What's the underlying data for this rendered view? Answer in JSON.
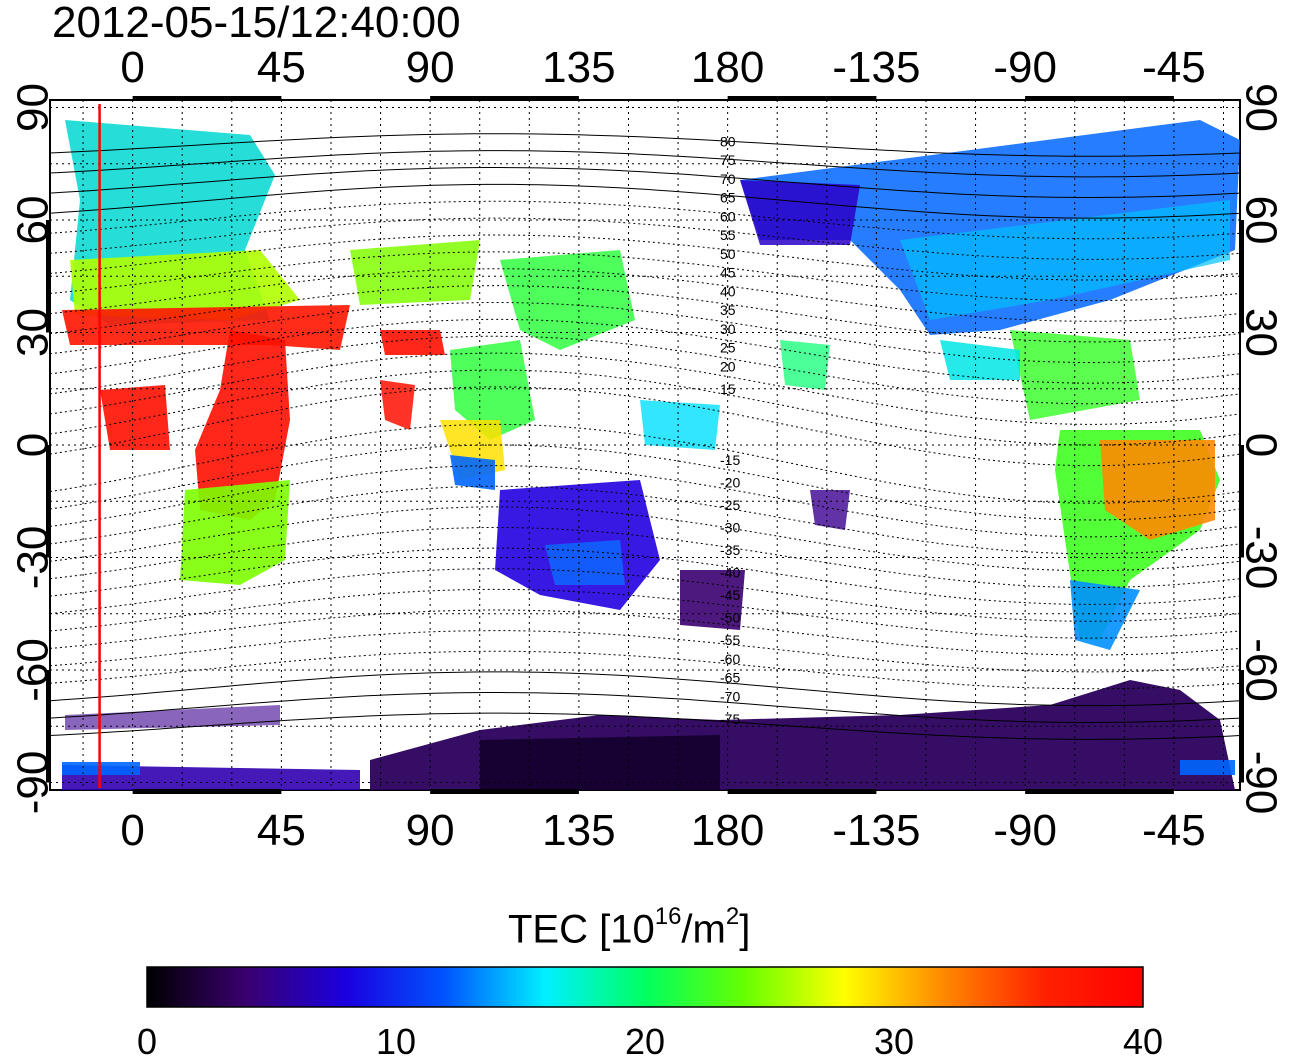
{
  "title": "2012-05-15/12:40:00",
  "map": {
    "x_ticks": [
      "0",
      "45",
      "90",
      "135",
      "180",
      "-135",
      "-90",
      "-45"
    ],
    "x_tick_lons": [
      0,
      45,
      90,
      135,
      180,
      225,
      270,
      315
    ],
    "y_ticks": [
      "90",
      "60",
      "30",
      "0",
      "-30",
      "-60",
      "-90"
    ],
    "y_tick_lats": [
      90,
      60,
      30,
      0,
      -30,
      -60,
      -90
    ],
    "lon_range": [
      -25,
      335
    ],
    "lat_range": [
      -92,
      92
    ],
    "terminator_lon": -10,
    "contour_labels": [
      "80",
      "75",
      "70",
      "65",
      "60",
      "55",
      "50",
      "45",
      "40",
      "35",
      "30",
      "25",
      "20",
      "15",
      "-15",
      "-20",
      "-25",
      "-30",
      "-35",
      "-40",
      "-45",
      "-50",
      "-55",
      "-60",
      "-65",
      "-70",
      "-75"
    ],
    "contour_label_lats": [
      81,
      76,
      71,
      66,
      61,
      56,
      51,
      46,
      41,
      36,
      31,
      26,
      21,
      15,
      -4,
      -10,
      -16,
      -22,
      -28,
      -34,
      -40,
      -46,
      -52,
      -57,
      -62,
      -67,
      -73
    ],
    "colors": {
      "terminator": "#ff0000",
      "grid": "#000000"
    }
  },
  "colorbar": {
    "label_prefix": "TEC  [10",
    "label_exp1": "16",
    "label_mid": "/m",
    "label_exp2": "2",
    "label_suffix": "]",
    "ticks": [
      "0",
      "10",
      "20",
      "30",
      "40"
    ],
    "tick_values": [
      0,
      10,
      20,
      30,
      40
    ],
    "range": [
      0,
      40
    ],
    "stops": [
      "#000000",
      "#3a0070",
      "#1a00e0",
      "#0055ff",
      "#00f0ff",
      "#00ff60",
      "#66ff00",
      "#ffff00",
      "#ff8800",
      "#ff2200",
      "#ff0000"
    ]
  }
}
